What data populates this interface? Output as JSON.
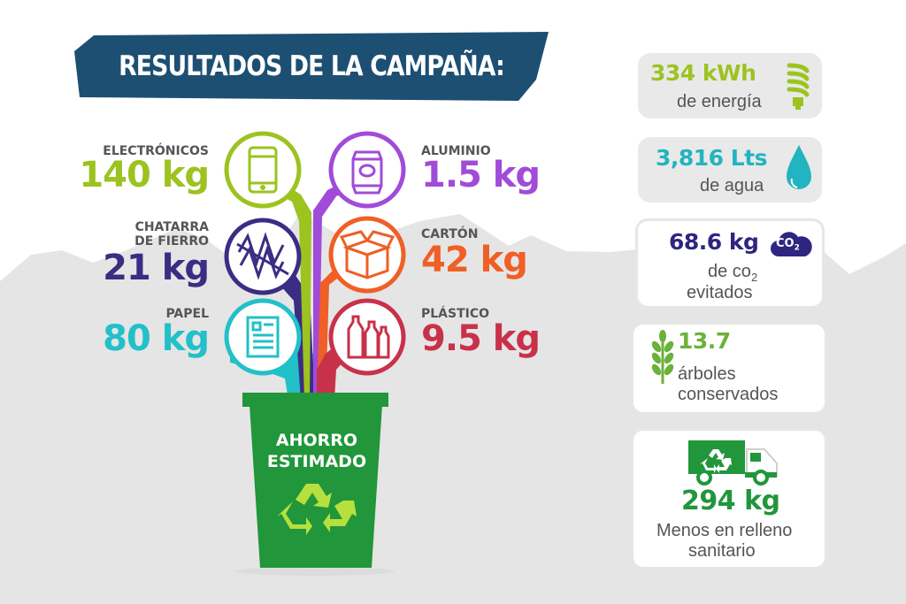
{
  "title": "RESULTADOS DE LA CAMPAÑA:",
  "categories": [
    {
      "label_lines": [
        "ELECTRÓNICOS"
      ],
      "value": "140 kg",
      "color": "#9cc31f",
      "icon": "smartphone-icon"
    },
    {
      "label_lines": [
        "CHATARRA",
        "DE FIERRO"
      ],
      "value": "21 kg",
      "color": "#3b2d84",
      "icon": "iron-scrap-icon"
    },
    {
      "label_lines": [
        "PAPEL"
      ],
      "value": "80 kg",
      "color": "#22c0c8",
      "icon": "document-icon"
    },
    {
      "label_lines": [
        "ALUMINIO"
      ],
      "value": "1.5 kg",
      "color": "#a14bd9",
      "icon": "soda-can-icon"
    },
    {
      "label_lines": [
        "CARTÓN"
      ],
      "value": "42 kg",
      "color": "#ef5f26",
      "icon": "cardboard-box-icon"
    },
    {
      "label_lines": [
        "PLÁSTICO"
      ],
      "value": "9.5 kg",
      "color": "#c8314a",
      "icon": "plastic-bottles-icon"
    }
  ],
  "bin": {
    "lines": [
      "AHORRO",
      "ESTIMADO"
    ],
    "color": "#21963b",
    "icon": "recycle-icon"
  },
  "savings": {
    "energy": {
      "value": "334 kWh",
      "label": "de energía",
      "color": "#9cc31f",
      "icon": "energy-bulb-icon"
    },
    "water": {
      "value": "3,816 Lts",
      "label": "de agua",
      "color": "#22b4c0",
      "icon": "water-drop-icon"
    },
    "co2": {
      "value": "68.6 kg",
      "label_pre": "de co",
      "label_sub": "2",
      "label_line2": "evitados",
      "badge_main": "CO",
      "badge_sub": "2",
      "color": "#2e2580",
      "icon": "co2-cloud-icon"
    },
    "trees": {
      "value": "13.7",
      "label_lines": [
        "árboles",
        "conservados"
      ],
      "color": "#6ab23a",
      "icon": "wheat-icon"
    },
    "landfill": {
      "value": "294 kg",
      "label_lines": [
        "Menos en relleno",
        "sanitario"
      ],
      "color": "#21963b",
      "icon": "recycling-truck-icon"
    }
  }
}
